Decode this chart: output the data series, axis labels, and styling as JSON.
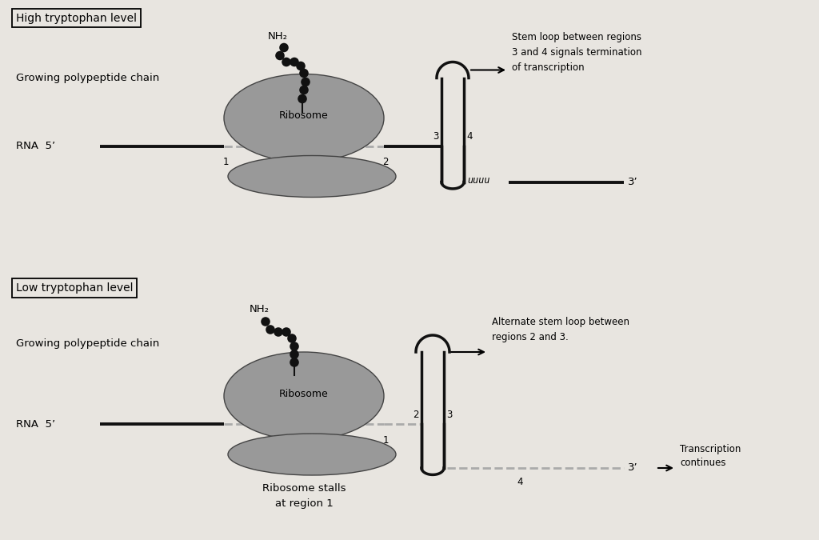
{
  "bg_color": "#e8e5e0",
  "fg_color": "#111111",
  "ribosome_color": "#999999",
  "bead_color": "#111111",
  "line_color": "#111111",
  "dashed_color": "#aaaaaa",
  "title1": "High tryptophan level",
  "title2": "Low tryptophan level",
  "label_rna": "RNA  5’",
  "label_chain": "Growing polypeptide chain",
  "label_nh2": "NH₂",
  "label_ribosome": "Ribosome",
  "label_stem_high": "Stem loop between regions\n3 and 4 signals termination\nof transcription",
  "label_stem_low": "Alternate stem loop between\nregions 2 and 3.",
  "label_stalls": "Ribosome stalls\nat region 1",
  "label_transcription": "Transcription\ncontinues",
  "uuuu_label": "uuuu"
}
